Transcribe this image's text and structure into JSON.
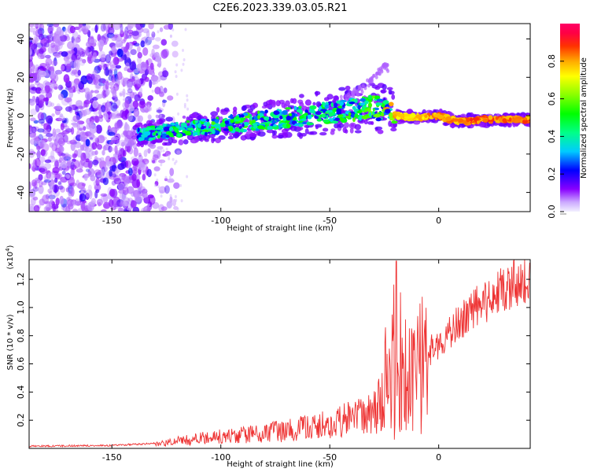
{
  "title": "C2E6.2023.339.03.05.R21",
  "chart_data": [
    {
      "type": "heatmap",
      "name": "spectrogram",
      "xlabel": "Height of straight line (km)",
      "ylabel": "Frequency (Hz)",
      "xlim": [
        -188,
        42
      ],
      "ylim": [
        -50,
        48
      ],
      "xticks": [
        -150,
        -100,
        -50,
        0
      ],
      "yticks": [
        40,
        20,
        0,
        -20,
        -40
      ],
      "xtick_labels": [
        "-150",
        "-100",
        "-50",
        "0"
      ],
      "ytick_labels": [
        "40",
        "20",
        "0",
        "-20",
        "-40"
      ],
      "ridge": [
        {
          "x": -138,
          "y": -10,
          "amp": 0.32
        },
        {
          "x": -125,
          "y": -8,
          "amp": 0.4
        },
        {
          "x": -110,
          "y": -6,
          "amp": 0.42
        },
        {
          "x": -100,
          "y": -5,
          "amp": 0.45
        },
        {
          "x": -85,
          "y": -3,
          "amp": 0.45
        },
        {
          "x": -70,
          "y": -1,
          "amp": 0.42
        },
        {
          "x": -55,
          "y": 1,
          "amp": 0.42
        },
        {
          "x": -40,
          "y": 3,
          "amp": 0.45
        },
        {
          "x": -30,
          "y": 5,
          "amp": 0.5
        },
        {
          "x": -20,
          "y": 0,
          "amp": 0.85
        },
        {
          "x": -10,
          "y": -1,
          "amp": 0.8
        },
        {
          "x": 0,
          "y": 0,
          "amp": 0.9
        },
        {
          "x": 5,
          "y": -2,
          "amp": 0.85
        },
        {
          "x": 10,
          "y": -3,
          "amp": 0.9
        },
        {
          "x": 20,
          "y": -2,
          "amp": 0.92
        },
        {
          "x": 30,
          "y": -2,
          "amp": 0.92
        },
        {
          "x": 42,
          "y": -2,
          "amp": 0.9
        }
      ],
      "branch": [
        {
          "x": -45,
          "y": 8
        },
        {
          "x": -35,
          "y": 14
        },
        {
          "x": -25,
          "y": 25
        }
      ]
    },
    {
      "type": "line",
      "name": "snr",
      "xlabel": "Height of straight line (km)",
      "ylabel": "SNR (10 * v/v)",
      "y_multiplier": "(x10",
      "y_multiplier_exp": "4",
      "y_multiplier_close": ")",
      "xlim": [
        -188,
        42
      ],
      "ylim": [
        0,
        1.34
      ],
      "xticks": [
        -150,
        -100,
        -50,
        0
      ],
      "yticks": [
        0.2,
        0.4,
        0.6,
        0.8,
        1.0,
        1.2
      ],
      "xtick_labels": [
        "-150",
        "-100",
        "-50",
        "0"
      ],
      "ytick_labels": [
        "0.2",
        "0.4",
        "0.6",
        "0.8",
        "1.0",
        "1.2"
      ],
      "color": "#ee3333",
      "envelope": [
        {
          "x": -188,
          "y": 0.01
        },
        {
          "x": -150,
          "y": 0.015
        },
        {
          "x": -130,
          "y": 0.03
        },
        {
          "x": -120,
          "y": 0.06
        },
        {
          "x": -100,
          "y": 0.1
        },
        {
          "x": -80,
          "y": 0.13
        },
        {
          "x": -60,
          "y": 0.17
        },
        {
          "x": -45,
          "y": 0.22
        },
        {
          "x": -30,
          "y": 0.3
        },
        {
          "x": -22,
          "y": 0.5
        },
        {
          "x": -19,
          "y": 0.7
        },
        {
          "x": -15,
          "y": 0.45
        },
        {
          "x": -10,
          "y": 0.5
        },
        {
          "x": -5,
          "y": 0.7
        },
        {
          "x": 5,
          "y": 0.85
        },
        {
          "x": 15,
          "y": 1.0
        },
        {
          "x": 25,
          "y": 1.12
        },
        {
          "x": 35,
          "y": 1.2
        },
        {
          "x": 42,
          "y": 1.22
        }
      ]
    }
  ],
  "colorbar": {
    "label": "Normalized spectral amplitude",
    "ticks": [
      0.0,
      0.2,
      0.4,
      0.6,
      0.8
    ],
    "tick_labels": [
      "0.0",
      "0.2",
      "0.4",
      "0.6",
      "0.8"
    ],
    "range": [
      0,
      1
    ]
  }
}
